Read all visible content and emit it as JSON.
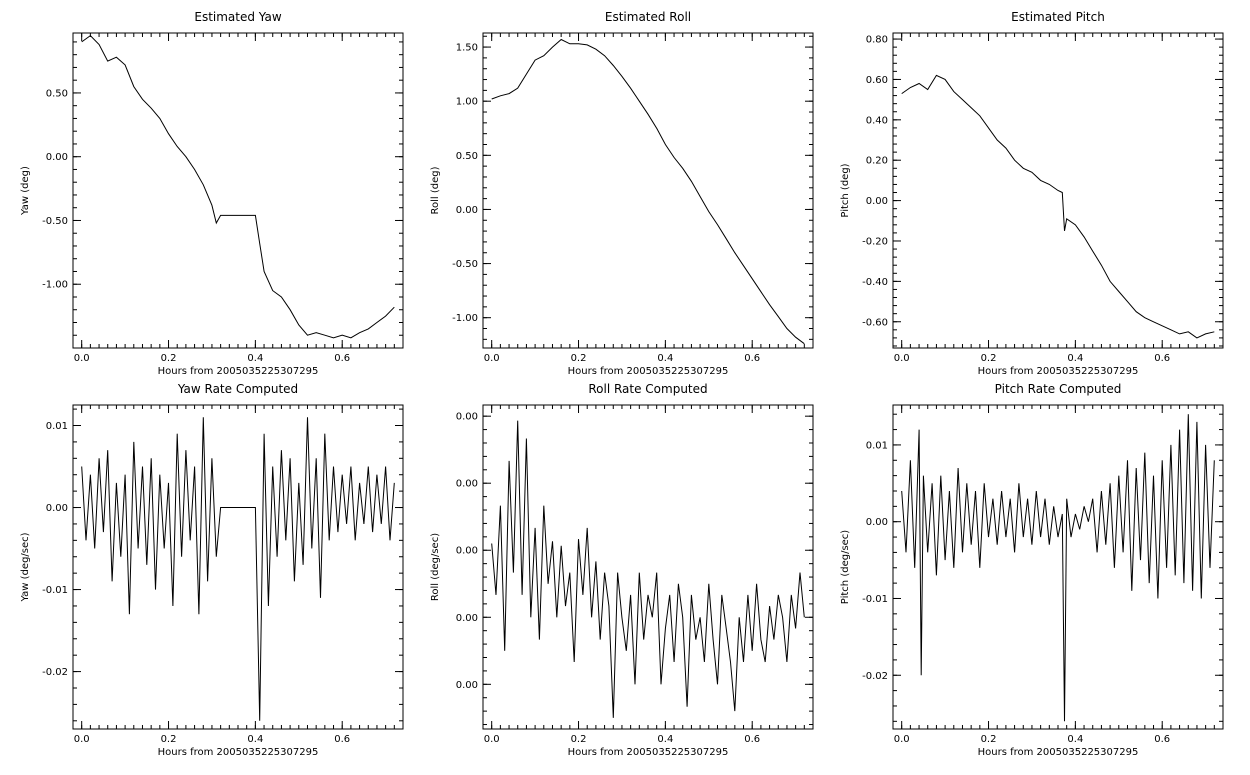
{
  "chart_data": [
    {
      "type": "line",
      "title": "Estimated Yaw",
      "xlabel": "Hours from 2005035225307295",
      "ylabel": "Yaw (deg)",
      "xlim": [
        -0.02,
        0.74
      ],
      "ylim": [
        -1.5,
        0.97
      ],
      "xticks": [
        0.0,
        0.2,
        0.4,
        0.6
      ],
      "xtick_labels": [
        "0.0",
        "0.2",
        "0.4",
        "0.6"
      ],
      "yticks": [
        -1.0,
        -0.5,
        0.0,
        0.5
      ],
      "ytick_labels": [
        "-1.00",
        "-0.50",
        "0.00",
        "0.50"
      ],
      "series": [
        {
          "x": [
            0.0,
            0.02,
            0.04,
            0.06,
            0.08,
            0.1,
            0.12,
            0.14,
            0.16,
            0.18,
            0.2,
            0.22,
            0.24,
            0.26,
            0.28,
            0.3,
            0.31,
            0.32,
            0.35,
            0.38,
            0.4,
            0.41,
            0.42,
            0.44,
            0.46,
            0.48,
            0.5,
            0.52,
            0.54,
            0.56,
            0.58,
            0.6,
            0.62,
            0.64,
            0.66,
            0.68,
            0.7,
            0.72
          ],
          "y": [
            0.9,
            0.95,
            0.88,
            0.75,
            0.78,
            0.72,
            0.55,
            0.45,
            0.38,
            0.3,
            0.18,
            0.08,
            0.0,
            -0.1,
            -0.22,
            -0.38,
            -0.52,
            -0.46,
            -0.46,
            -0.46,
            -0.46,
            -0.68,
            -0.9,
            -1.05,
            -1.1,
            -1.2,
            -1.32,
            -1.4,
            -1.38,
            -1.4,
            -1.42,
            -1.4,
            -1.42,
            -1.38,
            -1.35,
            -1.3,
            -1.25,
            -1.18
          ]
        }
      ]
    },
    {
      "type": "line",
      "title": "Estimated Roll",
      "xlabel": "Hours from 2005035225307295",
      "ylabel": "Roll (deg)",
      "xlim": [
        -0.02,
        0.74
      ],
      "ylim": [
        -1.28,
        1.63
      ],
      "xticks": [
        0.0,
        0.2,
        0.4,
        0.6
      ],
      "xtick_labels": [
        "0.0",
        "0.2",
        "0.4",
        "0.6"
      ],
      "yticks": [
        -1.0,
        -0.5,
        0.0,
        0.5,
        1.0,
        1.5
      ],
      "ytick_labels": [
        "-1.00",
        "-0.50",
        "0.00",
        "0.50",
        "1.00",
        "1.50"
      ],
      "series": [
        {
          "x": [
            0.0,
            0.02,
            0.04,
            0.06,
            0.08,
            0.1,
            0.12,
            0.14,
            0.16,
            0.18,
            0.2,
            0.22,
            0.24,
            0.26,
            0.28,
            0.3,
            0.32,
            0.34,
            0.36,
            0.38,
            0.4,
            0.42,
            0.44,
            0.46,
            0.48,
            0.5,
            0.52,
            0.54,
            0.56,
            0.58,
            0.6,
            0.62,
            0.64,
            0.66,
            0.68,
            0.7,
            0.72
          ],
          "y": [
            1.02,
            1.05,
            1.07,
            1.12,
            1.25,
            1.38,
            1.42,
            1.5,
            1.57,
            1.53,
            1.53,
            1.52,
            1.48,
            1.42,
            1.33,
            1.23,
            1.12,
            1.0,
            0.88,
            0.75,
            0.6,
            0.48,
            0.38,
            0.26,
            0.12,
            -0.02,
            -0.14,
            -0.27,
            -0.4,
            -0.52,
            -0.64,
            -0.76,
            -0.88,
            -0.99,
            -1.1,
            -1.18,
            -1.24
          ]
        }
      ]
    },
    {
      "type": "line",
      "title": "Estimated Pitch",
      "xlabel": "Hours from 2005035225307295",
      "ylabel": "Pitch (deg)",
      "xlim": [
        -0.02,
        0.74
      ],
      "ylim": [
        -0.73,
        0.83
      ],
      "xticks": [
        0.0,
        0.2,
        0.4,
        0.6
      ],
      "xtick_labels": [
        "0.0",
        "0.2",
        "0.4",
        "0.6"
      ],
      "yticks": [
        -0.6,
        -0.4,
        -0.2,
        0.0,
        0.2,
        0.4,
        0.6,
        0.8
      ],
      "ytick_labels": [
        "-0.60",
        "-0.40",
        "-0.20",
        "0.00",
        "0.20",
        "0.40",
        "0.60",
        "0.80"
      ],
      "series": [
        {
          "x": [
            0.0,
            0.02,
            0.04,
            0.06,
            0.08,
            0.1,
            0.12,
            0.14,
            0.16,
            0.18,
            0.2,
            0.22,
            0.24,
            0.26,
            0.28,
            0.3,
            0.32,
            0.34,
            0.36,
            0.37,
            0.375,
            0.38,
            0.4,
            0.42,
            0.44,
            0.46,
            0.48,
            0.5,
            0.52,
            0.54,
            0.56,
            0.58,
            0.6,
            0.62,
            0.64,
            0.66,
            0.68,
            0.7,
            0.72
          ],
          "y": [
            0.53,
            0.56,
            0.58,
            0.55,
            0.62,
            0.6,
            0.54,
            0.5,
            0.46,
            0.42,
            0.36,
            0.3,
            0.26,
            0.2,
            0.16,
            0.14,
            0.1,
            0.08,
            0.05,
            0.04,
            -0.15,
            -0.09,
            -0.12,
            -0.18,
            -0.25,
            -0.32,
            -0.4,
            -0.45,
            -0.5,
            -0.55,
            -0.58,
            -0.6,
            -0.62,
            -0.64,
            -0.66,
            -0.65,
            -0.68,
            -0.66,
            -0.65
          ]
        }
      ]
    },
    {
      "type": "line",
      "title": "Yaw Rate Computed",
      "xlabel": "Hours from 2005035225307295",
      "ylabel": "Yaw (deg/sec)",
      "xlim": [
        -0.02,
        0.74
      ],
      "ylim": [
        -0.027,
        0.0125
      ],
      "xticks": [
        0.0,
        0.2,
        0.4,
        0.6
      ],
      "xtick_labels": [
        "0.0",
        "0.2",
        "0.4",
        "0.6"
      ],
      "yticks": [
        -0.02,
        -0.01,
        0.0,
        0.01
      ],
      "ytick_labels": [
        "-0.02",
        "-0.01",
        "0.00",
        "0.01"
      ],
      "series": [
        {
          "x": [
            0.0,
            0.01,
            0.02,
            0.03,
            0.04,
            0.05,
            0.06,
            0.07,
            0.08,
            0.09,
            0.1,
            0.11,
            0.12,
            0.13,
            0.14,
            0.15,
            0.16,
            0.17,
            0.18,
            0.19,
            0.2,
            0.21,
            0.22,
            0.23,
            0.24,
            0.25,
            0.26,
            0.27,
            0.28,
            0.29,
            0.3,
            0.31,
            0.32,
            0.35,
            0.38,
            0.4,
            0.41,
            0.42,
            0.43,
            0.44,
            0.45,
            0.46,
            0.47,
            0.48,
            0.49,
            0.5,
            0.51,
            0.52,
            0.53,
            0.54,
            0.55,
            0.56,
            0.57,
            0.58,
            0.59,
            0.6,
            0.61,
            0.62,
            0.63,
            0.64,
            0.65,
            0.66,
            0.67,
            0.68,
            0.69,
            0.7,
            0.71,
            0.72
          ],
          "y": [
            0.005,
            -0.004,
            0.004,
            -0.005,
            0.006,
            -0.003,
            0.007,
            -0.009,
            0.003,
            -0.006,
            0.004,
            -0.013,
            0.008,
            -0.005,
            0.005,
            -0.007,
            0.006,
            -0.01,
            0.004,
            -0.005,
            0.003,
            -0.012,
            0.009,
            -0.006,
            0.007,
            -0.004,
            0.005,
            -0.013,
            0.011,
            -0.009,
            0.006,
            -0.006,
            0.0,
            0.0,
            0.0,
            0.0,
            -0.026,
            0.009,
            -0.012,
            0.005,
            -0.006,
            0.007,
            -0.004,
            0.006,
            -0.009,
            0.003,
            -0.007,
            0.011,
            -0.005,
            0.006,
            -0.011,
            0.009,
            -0.004,
            0.005,
            -0.003,
            0.004,
            -0.002,
            0.005,
            -0.004,
            0.003,
            -0.002,
            0.005,
            -0.003,
            0.004,
            -0.002,
            0.005,
            -0.004,
            0.003
          ]
        }
      ]
    },
    {
      "type": "line",
      "title": "Roll Rate Computed",
      "xlabel": "Hours from 2005035225307295",
      "ylabel": "Roll (deg/sec)",
      "xlim": [
        -0.02,
        0.74
      ],
      "ylim": [
        -0.008,
        0.0065
      ],
      "xticks": [
        0.0,
        0.2,
        0.4,
        0.6
      ],
      "xtick_labels": [
        "0.0",
        "0.2",
        "0.4",
        "0.6"
      ],
      "yticks": [
        -0.006,
        -0.003,
        0.0,
        0.003,
        0.006
      ],
      "ytick_labels": [
        "0.00",
        "0.00",
        "0.00",
        "0.00",
        "0.00"
      ],
      "series": [
        {
          "x": [
            0.0,
            0.01,
            0.02,
            0.03,
            0.04,
            0.05,
            0.06,
            0.07,
            0.08,
            0.09,
            0.1,
            0.11,
            0.12,
            0.13,
            0.14,
            0.15,
            0.16,
            0.17,
            0.18,
            0.19,
            0.2,
            0.21,
            0.22,
            0.23,
            0.24,
            0.25,
            0.26,
            0.27,
            0.28,
            0.29,
            0.3,
            0.31,
            0.32,
            0.33,
            0.34,
            0.35,
            0.36,
            0.37,
            0.38,
            0.39,
            0.4,
            0.41,
            0.42,
            0.43,
            0.44,
            0.45,
            0.46,
            0.47,
            0.48,
            0.49,
            0.5,
            0.51,
            0.52,
            0.53,
            0.54,
            0.55,
            0.56,
            0.57,
            0.58,
            0.59,
            0.6,
            0.61,
            0.62,
            0.63,
            0.64,
            0.65,
            0.66,
            0.67,
            0.68,
            0.69,
            0.7,
            0.71,
            0.72
          ],
          "y": [
            0.0003,
            -0.002,
            0.002,
            -0.0045,
            0.004,
            -0.001,
            0.0058,
            -0.002,
            0.005,
            -0.003,
            0.001,
            -0.004,
            0.002,
            -0.0015,
            0.0004,
            -0.003,
            0.0002,
            -0.0025,
            -0.001,
            -0.005,
            0.0005,
            -0.002,
            0.001,
            -0.003,
            -0.0005,
            -0.004,
            -0.001,
            -0.0025,
            -0.0075,
            -0.001,
            -0.003,
            -0.0045,
            -0.002,
            -0.006,
            -0.001,
            -0.004,
            -0.002,
            -0.003,
            -0.001,
            -0.006,
            -0.0035,
            -0.002,
            -0.005,
            -0.0015,
            -0.003,
            -0.007,
            -0.002,
            -0.004,
            -0.003,
            -0.005,
            -0.0015,
            -0.004,
            -0.006,
            -0.002,
            -0.0035,
            -0.005,
            -0.0072,
            -0.003,
            -0.005,
            -0.002,
            -0.0045,
            -0.0015,
            -0.004,
            -0.005,
            -0.0025,
            -0.004,
            -0.002,
            -0.003,
            -0.005,
            -0.002,
            -0.0035,
            -0.001,
            -0.003
          ]
        }
      ]
    },
    {
      "type": "line",
      "title": "Pitch Rate Computed",
      "xlabel": "Hours from 2005035225307295",
      "ylabel": "Pitch (deg/sec)",
      "xlim": [
        -0.02,
        0.74
      ],
      "ylim": [
        -0.027,
        0.0152
      ],
      "xticks": [
        0.0,
        0.2,
        0.4,
        0.6
      ],
      "xtick_labels": [
        "0.0",
        "0.2",
        "0.4",
        "0.6"
      ],
      "yticks": [
        -0.02,
        -0.01,
        0.0,
        0.01
      ],
      "ytick_labels": [
        "-0.02",
        "-0.01",
        "0.00",
        "0.01"
      ],
      "series": [
        {
          "x": [
            0.0,
            0.01,
            0.02,
            0.03,
            0.04,
            0.045,
            0.05,
            0.06,
            0.07,
            0.08,
            0.09,
            0.1,
            0.11,
            0.12,
            0.13,
            0.14,
            0.15,
            0.16,
            0.17,
            0.18,
            0.19,
            0.2,
            0.21,
            0.22,
            0.23,
            0.24,
            0.25,
            0.26,
            0.27,
            0.28,
            0.29,
            0.3,
            0.31,
            0.32,
            0.33,
            0.34,
            0.35,
            0.36,
            0.37,
            0.375,
            0.38,
            0.39,
            0.4,
            0.41,
            0.42,
            0.43,
            0.44,
            0.45,
            0.46,
            0.47,
            0.48,
            0.49,
            0.5,
            0.51,
            0.52,
            0.53,
            0.54,
            0.55,
            0.56,
            0.57,
            0.58,
            0.59,
            0.6,
            0.61,
            0.62,
            0.63,
            0.64,
            0.65,
            0.66,
            0.67,
            0.68,
            0.69,
            0.7,
            0.71,
            0.72
          ],
          "y": [
            0.004,
            -0.004,
            0.008,
            -0.006,
            0.012,
            -0.02,
            0.006,
            -0.004,
            0.005,
            -0.007,
            0.006,
            -0.005,
            0.004,
            -0.006,
            0.007,
            -0.004,
            0.005,
            -0.003,
            0.004,
            -0.006,
            0.005,
            -0.002,
            0.003,
            -0.003,
            0.004,
            -0.002,
            0.003,
            -0.004,
            0.005,
            -0.002,
            0.003,
            -0.003,
            0.004,
            -0.002,
            0.003,
            -0.003,
            0.002,
            -0.002,
            0.001,
            -0.026,
            0.003,
            -0.002,
            0.001,
            -0.001,
            0.002,
            0.0,
            0.003,
            -0.004,
            0.004,
            -0.003,
            0.005,
            -0.006,
            0.006,
            -0.004,
            0.008,
            -0.009,
            0.007,
            -0.005,
            0.009,
            -0.008,
            0.006,
            -0.01,
            0.008,
            -0.006,
            0.01,
            -0.007,
            0.012,
            -0.008,
            0.014,
            -0.009,
            0.013,
            -0.01,
            0.01,
            -0.006,
            0.008
          ]
        }
      ]
    }
  ]
}
